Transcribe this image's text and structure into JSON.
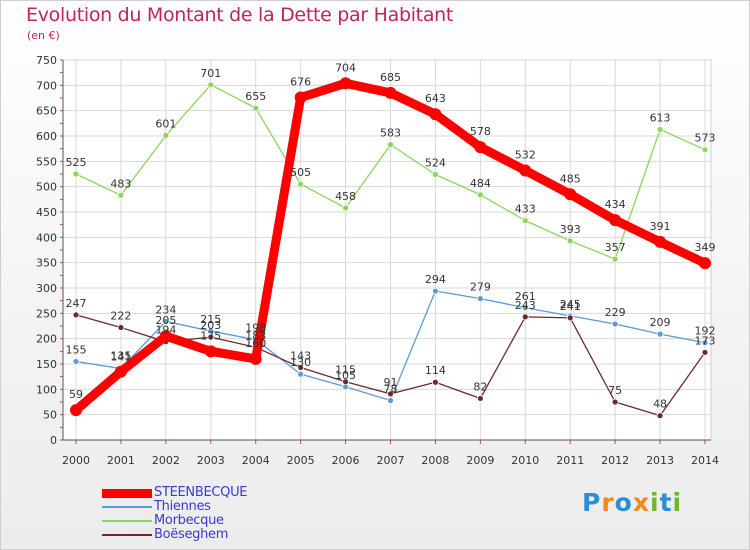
{
  "chart_data": {
    "type": "line",
    "title": "Evolution du Montant de la Dette par Habitant",
    "subtitle": "(en €)",
    "x": [
      "2000",
      "2001",
      "2002",
      "2003",
      "2004",
      "2005",
      "2006",
      "2007",
      "2008",
      "2009",
      "2010",
      "2011",
      "2012",
      "2013",
      "2014"
    ],
    "ylim": [
      0,
      750
    ],
    "yticks": [
      0,
      50,
      100,
      150,
      200,
      250,
      300,
      350,
      400,
      450,
      500,
      550,
      600,
      650,
      700,
      750
    ],
    "grid": true,
    "legend_position": "bottom-left",
    "series": [
      {
        "name": "STEENBECQUE",
        "color": "#ff0000",
        "values": [
          59,
          135,
          205,
          175,
          160,
          676,
          704,
          685,
          643,
          578,
          532,
          485,
          434,
          391,
          349
        ]
      },
      {
        "name": "Thiennes",
        "color": "#5b9bd5",
        "values": [
          155,
          141,
          234,
          215,
          198,
          130,
          105,
          78,
          294,
          279,
          261,
          245,
          229,
          209,
          192
        ]
      },
      {
        "name": "Morbecque",
        "color": "#8cd65a",
        "values": [
          525,
          483,
          601,
          701,
          655,
          505,
          458,
          583,
          524,
          484,
          433,
          393,
          357,
          613,
          573
        ]
      },
      {
        "name": "Boëseghem",
        "color": "#6b2a2a",
        "values": [
          247,
          222,
          194,
          203,
          183,
          143,
          115,
          91,
          114,
          82,
          243,
          241,
          75,
          48,
          173
        ]
      }
    ]
  },
  "logo": {
    "letters": [
      "P",
      "r",
      "o",
      "x",
      "i",
      "t",
      "i"
    ],
    "colors": [
      "#2b8fd8",
      "#f08a1c",
      "#2b8fd8",
      "#f08a1c",
      "#6bb82e",
      "#2b8fd8",
      "#6bb82e"
    ]
  }
}
